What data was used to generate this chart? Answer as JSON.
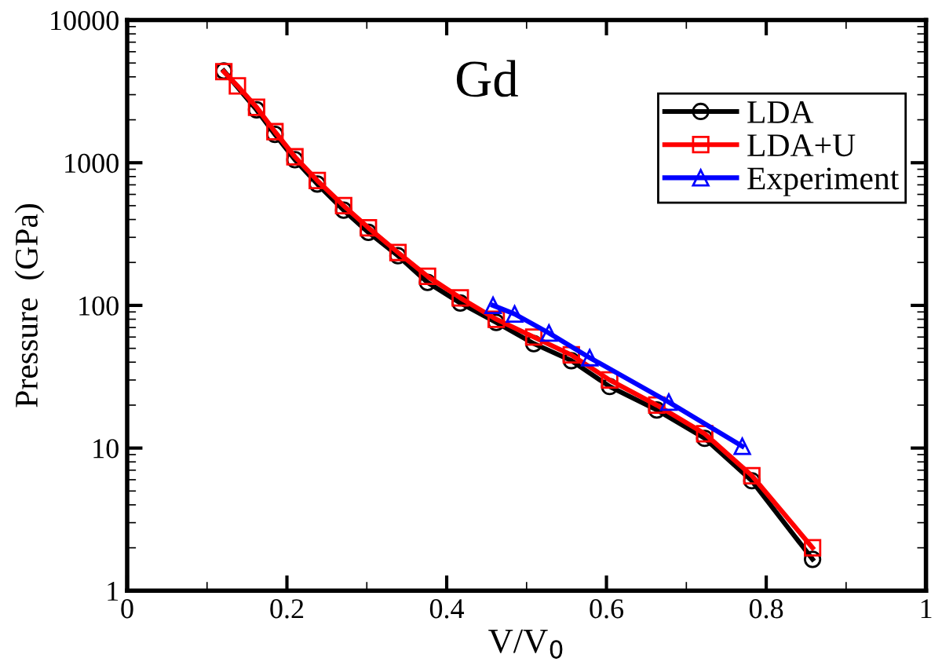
{
  "chart_data": {
    "type": "line",
    "title": "Gd",
    "xlabel": "V/V$_{0}$",
    "ylabel": "Pressure  (GPa)",
    "log": "y",
    "xlim": [
      0,
      1
    ],
    "xticks": [
      0,
      0.2,
      0.4,
      0.6,
      0.8,
      1
    ],
    "ylim": [
      1,
      10000
    ],
    "yticks": [
      1,
      10,
      100,
      1000,
      10000
    ],
    "legend": "top right",
    "grid": false,
    "series": [
      {
        "name": "LDA",
        "color": "#000000",
        "marker": "circle",
        "x": [
          0.121,
          0.162,
          0.185,
          0.21,
          0.238,
          0.271,
          0.302,
          0.339,
          0.376,
          0.417,
          0.462,
          0.509,
          0.556,
          0.604,
          0.663,
          0.723,
          0.782,
          0.858
        ],
        "values": [
          4400,
          2350,
          1580,
          1050,
          710,
          465,
          325,
          223,
          145,
          104,
          76,
          54,
          41,
          27,
          18.5,
          11.7,
          5.9,
          1.66
        ]
      },
      {
        "name": "LDA+U",
        "color": "#ff0000",
        "marker": "square",
        "x": [
          0.121,
          0.138,
          0.162,
          0.185,
          0.21,
          0.238,
          0.271,
          0.302,
          0.339,
          0.376,
          0.417,
          0.462,
          0.509,
          0.556,
          0.604,
          0.663,
          0.723,
          0.782,
          0.858
        ],
        "values": [
          4350,
          3460,
          2450,
          1650,
          1100,
          750,
          500,
          350,
          235,
          160,
          113,
          80,
          60,
          45,
          30,
          20,
          12.6,
          6.4,
          2.0
        ]
      },
      {
        "name": "Experiment",
        "color": "#0000ff",
        "marker": "triangle",
        "x": [
          0.458,
          0.485,
          0.528,
          0.579,
          0.678,
          0.77
        ],
        "values": [
          100,
          87,
          64,
          43,
          21,
          10.3
        ]
      }
    ]
  }
}
